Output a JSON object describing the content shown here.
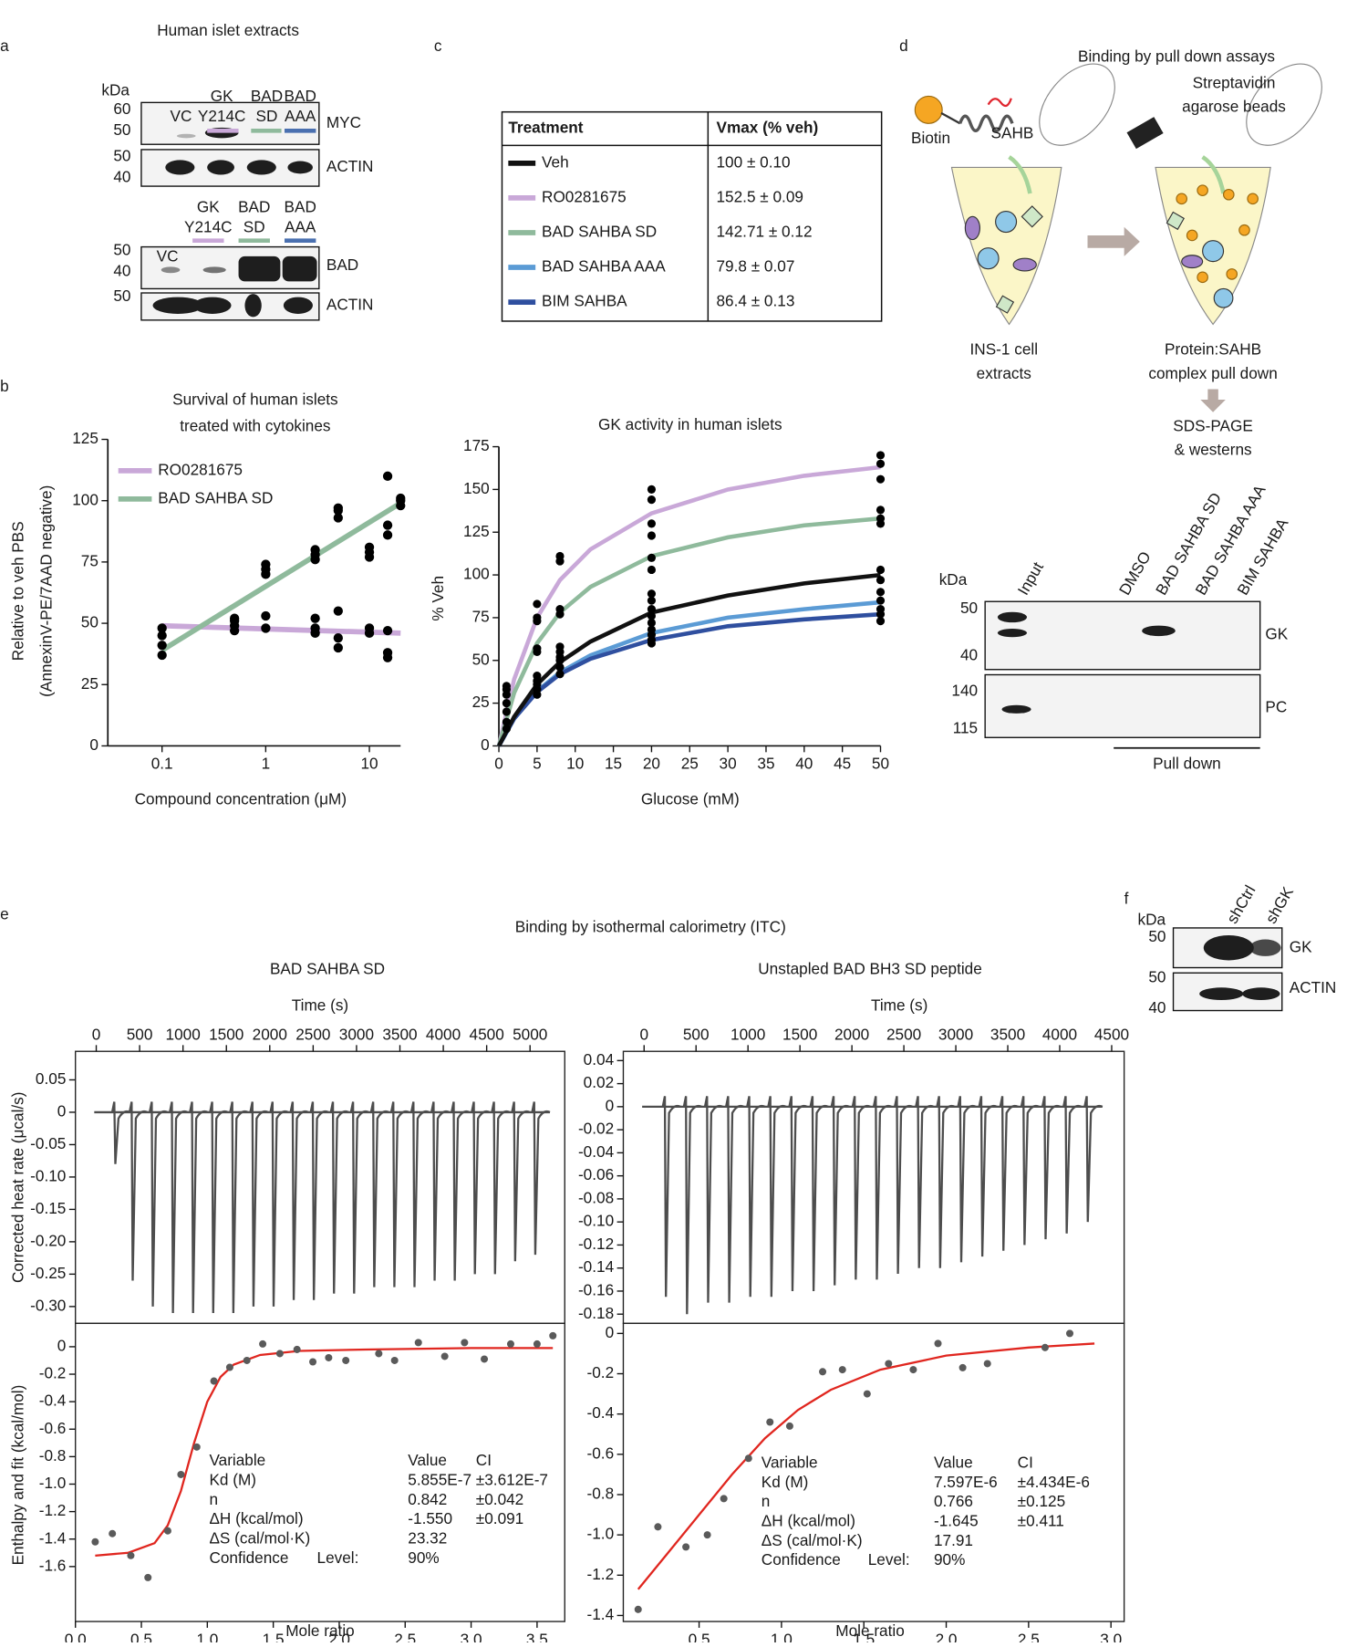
{
  "panels": [
    "a",
    "b",
    "c",
    "d",
    "e",
    "f"
  ],
  "panel_a": {
    "title": "Human islet extracts",
    "kda": "kDa",
    "lanes_top": [
      [
        "VC"
      ],
      [
        "GK",
        "Y214C"
      ],
      [
        "BAD",
        "SD"
      ],
      [
        "BAD",
        "AAA"
      ]
    ],
    "lanes_bottom": [
      [
        "VC"
      ],
      [
        "GK",
        "Y214C"
      ],
      [
        "BAD",
        "SD"
      ],
      [
        "BAD",
        "AAA"
      ]
    ],
    "blots": [
      {
        "label": "MYC",
        "markers": [
          60,
          50
        ]
      },
      {
        "label": "ACTIN",
        "markers": [
          50,
          40
        ]
      },
      {
        "label": "BAD",
        "markers": [
          50,
          40
        ]
      },
      {
        "label": "ACTIN",
        "markers": [
          50
        ]
      }
    ]
  },
  "panel_c": {
    "header": [
      "Treatment",
      "Vmax (% veh)"
    ],
    "rows": [
      {
        "name": "Veh",
        "color": "#111111",
        "value": "100 ± 0.10"
      },
      {
        "name": "RO0281675",
        "color": "#c9a8d8",
        "value": "152.5 ± 0.09"
      },
      {
        "name": "BAD SAHBA SD",
        "color": "#8fba9c",
        "value": "142.71 ± 0.12"
      },
      {
        "name": "BAD SAHBA AAA",
        "color": "#5b9bd5",
        "value": "79.8 ± 0.07"
      },
      {
        "name": "BIM SAHBA",
        "color": "#2f4f9f",
        "value": "86.4 ± 0.13"
      }
    ]
  },
  "panel_d": {
    "title": "Binding by pull down assays",
    "biotin": "Biotin",
    "sahb": "SAHB",
    "beads": [
      "Streptavidin",
      "agarose beads"
    ],
    "extracts": [
      "INS-1 cell",
      "extracts"
    ],
    "complex": [
      "Protein:SAHB",
      "complex pull down"
    ],
    "westerns": [
      "SDS-PAGE",
      "& westerns"
    ],
    "kda": "kDa",
    "lanes": [
      "Input",
      "DMSO",
      "BAD SAHBA SD",
      "BAD SAHBA AAA",
      "BIM SAHBA"
    ],
    "blots": [
      {
        "label": "GK",
        "markers": [
          50,
          40
        ]
      },
      {
        "label": "PC",
        "markers": [
          140,
          115
        ]
      }
    ],
    "pulldown": "Pull down"
  },
  "panel_e": {
    "title": "Binding by isothermal calorimetry (ITC)"
  },
  "panel_f": {
    "kda": "kDa",
    "lanes": [
      "shCtrl",
      "shGK"
    ],
    "blots": [
      {
        "label": "GK",
        "markers": [
          50
        ]
      },
      {
        "label": "ACTIN",
        "markers": [
          50,
          40
        ]
      }
    ]
  },
  "chart_data": [
    {
      "type": "scatter",
      "title": [
        "Survival of human islets",
        "treated with cytokines"
      ],
      "xlabel": "Compound concentration (μM)",
      "ylabel": [
        "Relative to veh PBS",
        "(AnnexinV-PE/7AAD negative)"
      ],
      "xlog": true,
      "xlim": [
        0.03,
        20
      ],
      "xticks": [
        0.1,
        1,
        10
      ],
      "ylim": [
        0,
        125
      ],
      "yticks": [
        0,
        25,
        50,
        75,
        100,
        125
      ],
      "legend": "upper left",
      "point_color": "#000000",
      "series": [
        {
          "name": "RO0281675",
          "color": "#c9a8d8",
          "x": [
            0.1,
            0.1,
            0.5,
            0.5,
            1,
            1,
            3,
            3,
            3,
            5,
            5,
            5,
            10,
            10,
            15,
            15,
            15
          ],
          "values": [
            37,
            41,
            47,
            49,
            48,
            53,
            46,
            48,
            52,
            40,
            44,
            55,
            46,
            48,
            36,
            38,
            47
          ],
          "fit_x": [
            0.1,
            20
          ],
          "fit_values": [
            49,
            46
          ]
        },
        {
          "name": "BAD SAHBA SD",
          "color": "#8fba9c",
          "x": [
            0.1,
            0.1,
            0.5,
            0.5,
            1,
            1,
            1,
            3,
            3,
            3,
            5,
            5,
            5,
            10,
            10,
            10,
            15,
            15,
            15,
            20,
            20,
            20
          ],
          "values": [
            45,
            48,
            51,
            52,
            70,
            72,
            74,
            76,
            78,
            80,
            93,
            96,
            97,
            77,
            79,
            81,
            86,
            90,
            110,
            98,
            100,
            101
          ],
          "fit_x": [
            0.1,
            20
          ],
          "fit_values": [
            39,
            99
          ]
        }
      ]
    },
    {
      "type": "scatter",
      "title": "GK activity in human islets",
      "xlabel": "Glucose (mM)",
      "ylabel": "% Veh",
      "xlim": [
        0,
        50
      ],
      "xticks": [
        0,
        5,
        10,
        15,
        20,
        25,
        30,
        35,
        40,
        45,
        50
      ],
      "ylim": [
        0,
        175
      ],
      "yticks": [
        0,
        25,
        50,
        75,
        100,
        125,
        150,
        175
      ],
      "points": {
        "color": "#000000",
        "x": [
          1,
          1,
          1,
          1,
          1,
          1,
          1,
          5,
          5,
          5,
          5,
          5,
          5,
          5,
          5,
          5,
          5,
          8,
          8,
          8,
          8,
          8,
          8,
          8,
          8,
          8,
          8,
          20,
          20,
          20,
          20,
          20,
          20,
          20,
          20,
          20,
          20,
          20,
          20,
          20,
          20,
          20,
          50,
          50,
          50,
          50,
          50,
          50,
          50,
          50,
          50,
          50,
          50,
          50,
          50
        ],
        "values": [
          10,
          14,
          20,
          25,
          30,
          33,
          35,
          30,
          33,
          36,
          38,
          41,
          55,
          57,
          73,
          75,
          83,
          42,
          46,
          50,
          52,
          55,
          58,
          77,
          80,
          108,
          111,
          60,
          62,
          65,
          68,
          72,
          76,
          80,
          85,
          89,
          103,
          110,
          123,
          130,
          144,
          150,
          73,
          77,
          80,
          85,
          90,
          97,
          103,
          130,
          133,
          138,
          156,
          165,
          170
        ]
      },
      "series": [
        {
          "color": "#c9a8d8",
          "x": [
            0,
            2,
            5,
            8,
            12,
            20,
            30,
            40,
            50
          ],
          "values": [
            0,
            39,
            75,
            97,
            115,
            136,
            150,
            158,
            163
          ]
        },
        {
          "color": "#8fba9c",
          "x": [
            0,
            2,
            5,
            8,
            12,
            20,
            30,
            40,
            50
          ],
          "values": [
            0,
            31,
            60,
            78,
            93,
            111,
            122,
            129,
            133
          ]
        },
        {
          "color": "#5b9bd5",
          "x": [
            0,
            2,
            5,
            8,
            12,
            20,
            30,
            40,
            50
          ],
          "values": [
            0,
            16,
            32,
            43,
            53,
            66,
            75,
            80,
            84
          ]
        },
        {
          "color": "#2f4f9f",
          "x": [
            0,
            2,
            5,
            8,
            12,
            20,
            30,
            40,
            50
          ],
          "values": [
            0,
            16,
            31.5,
            42,
            51,
            62,
            70,
            74,
            77
          ]
        },
        {
          "color": "#111111",
          "x": [
            0,
            2,
            5,
            8,
            12,
            20,
            30,
            40,
            50
          ],
          "values": [
            0,
            17,
            36,
            49,
            61,
            78,
            88,
            95,
            100
          ]
        }
      ]
    },
    {
      "type": "line",
      "title": "BAD SAHBA SD",
      "xlabel": "Time (s)",
      "ylabel": "Corrected heat rate (μcal/s)",
      "xlim": [
        -240,
        5400
      ],
      "xticks": [
        0,
        500,
        1000,
        1500,
        2000,
        2500,
        3000,
        3500,
        4000,
        4500,
        5000
      ],
      "ylim": [
        -0.326,
        0.094
      ],
      "yticks": [
        0.05,
        0,
        -0.05,
        {
          "value": -0.1,
          "label": "-0.10"
        },
        -0.15,
        {
          "value": -0.2,
          "label": "-0.20"
        },
        -0.25,
        {
          "value": -0.3,
          "label": "-0.30"
        }
      ],
      "series": [
        {
          "color": "#4d4d4d",
          "x": [
            220,
            420,
            652,
            884,
            1116,
            1348,
            1580,
            1812,
            2044,
            2276,
            2508,
            2740,
            2972,
            3204,
            3436,
            3668,
            3900,
            4132,
            4364,
            4596,
            4828,
            5060
          ],
          "values": [
            -0.08,
            -0.26,
            -0.3,
            -0.31,
            -0.31,
            -0.31,
            -0.31,
            -0.3,
            -0.3,
            -0.29,
            -0.29,
            -0.28,
            -0.28,
            -0.27,
            -0.27,
            -0.27,
            -0.26,
            -0.26,
            -0.25,
            -0.25,
            -0.23,
            -0.22
          ]
        }
      ]
    },
    {
      "type": "scatter",
      "xlabel": "Mole ratio",
      "ylabel": "Enthalpy and fit (kcal/mol)",
      "xlim": [
        0,
        3.71
      ],
      "xticks": [
        {
          "value": 0,
          "label": "0.0"
        },
        0.5,
        {
          "value": 1,
          "label": "1.0"
        },
        1.5,
        {
          "value": 2,
          "label": "2.0"
        },
        2.5,
        {
          "value": 3,
          "label": "3.0"
        },
        3.5
      ],
      "ylim": [
        -2.0,
        0.17
      ],
      "yticks": [
        0,
        -0.2,
        -0.4,
        -0.6,
        -0.8,
        {
          "value": -1,
          "label": "-1.0"
        },
        -1.2,
        -1.4,
        -1.6
      ],
      "points": {
        "color": "#5a5a5a",
        "x": [
          0.15,
          0.28,
          0.42,
          0.55,
          0.7,
          0.8,
          0.92,
          1.05,
          1.17,
          1.3,
          1.42,
          1.55,
          1.68,
          1.8,
          1.92,
          2.05,
          2.3,
          2.42,
          2.6,
          2.8,
          2.95,
          3.1,
          3.3,
          3.5,
          3.62
        ],
        "values": [
          -1.42,
          -1.36,
          -1.52,
          -1.68,
          -1.34,
          -0.93,
          -0.73,
          -0.25,
          -0.15,
          -0.1,
          0.02,
          -0.05,
          -0.02,
          -0.11,
          -0.08,
          -0.1,
          -0.05,
          -0.1,
          0.03,
          -0.07,
          0.03,
          -0.09,
          0.02,
          0.02,
          0.08
        ]
      },
      "fit": {
        "color": "#e0261f",
        "x": [
          0.15,
          0.4,
          0.6,
          0.7,
          0.8,
          0.9,
          1.0,
          1.1,
          1.2,
          1.4,
          1.7,
          2.2,
          3.0,
          3.62
        ],
        "values": [
          -1.52,
          -1.5,
          -1.43,
          -1.3,
          -1.05,
          -0.7,
          -0.4,
          -0.22,
          -0.13,
          -0.06,
          -0.03,
          -0.02,
          -0.01,
          -0.01
        ]
      },
      "stats": [
        [
          "Variable",
          "Value",
          "CI"
        ],
        [
          "Kd (M)",
          "5.855E-7",
          "±3.612E-7"
        ],
        [
          "n",
          "0.842",
          "±0.042"
        ],
        [
          "ΔH (kcal/mol)",
          "-1.550",
          "±0.091"
        ],
        [
          "ΔS (cal/mol·K)",
          "23.32"
        ],
        [
          "Confidence",
          "Level:",
          "90%"
        ]
      ]
    },
    {
      "type": "line",
      "title": "Unstapled BAD BH3 SD peptide",
      "xlabel": "Time (s)",
      "xlim": [
        -200,
        4620
      ],
      "xticks": [
        0,
        500,
        1000,
        1500,
        2000,
        2500,
        3000,
        3500,
        4000,
        4500
      ],
      "ylim": [
        -0.188,
        0.048
      ],
      "yticks": [
        0.04,
        0.02,
        0,
        -0.02,
        -0.04,
        -0.06,
        -0.08,
        {
          "value": -0.1,
          "label": "-0.10"
        },
        -0.12,
        -0.14,
        -0.16,
        -0.18
      ],
      "series": [
        {
          "color": "#4d4d4d",
          "x": [
            210,
            413,
            616,
            819,
            1022,
            1225,
            1428,
            1631,
            1834,
            2037,
            2240,
            2443,
            2646,
            2849,
            3052,
            3255,
            3458,
            3661,
            3864,
            4067,
            4270
          ],
          "values": [
            -0.165,
            -0.18,
            -0.17,
            -0.17,
            -0.165,
            -0.165,
            -0.16,
            -0.16,
            -0.155,
            -0.15,
            -0.15,
            -0.145,
            -0.14,
            -0.14,
            -0.135,
            -0.13,
            -0.125,
            -0.12,
            -0.115,
            -0.11,
            -0.1
          ]
        }
      ]
    },
    {
      "type": "scatter",
      "xlabel": "Mole ratio",
      "xlim": [
        0.04,
        3.08
      ],
      "xticks": [
        0.5,
        {
          "value": 1,
          "label": "1.0"
        },
        1.5,
        {
          "value": 2,
          "label": "2.0"
        },
        2.5,
        {
          "value": 3,
          "label": "3.0"
        }
      ],
      "ylim": [
        -1.43,
        0.05
      ],
      "yticks": [
        0,
        -0.2,
        -0.4,
        -0.6,
        -0.8,
        {
          "value": -1,
          "label": "-1.0"
        },
        -1.2,
        -1.4
      ],
      "points": {
        "color": "#5a5a5a",
        "x": [
          0.13,
          0.25,
          0.42,
          0.55,
          0.65,
          0.8,
          0.93,
          1.05,
          1.25,
          1.37,
          1.52,
          1.65,
          1.8,
          1.95,
          2.1,
          2.25,
          2.6,
          2.75
        ],
        "values": [
          -1.37,
          -0.96,
          -1.06,
          -1.0,
          -0.82,
          -0.62,
          -0.44,
          -0.46,
          -0.19,
          -0.18,
          -0.3,
          -0.15,
          -0.18,
          -0.05,
          -0.17,
          -0.15,
          -0.07,
          0.0
        ]
      },
      "fit": {
        "color": "#e0261f",
        "x": [
          0.13,
          0.3,
          0.5,
          0.7,
          0.9,
          1.1,
          1.3,
          1.6,
          2.0,
          2.5,
          2.9
        ],
        "values": [
          -1.27,
          -1.1,
          -0.9,
          -0.7,
          -0.52,
          -0.38,
          -0.28,
          -0.18,
          -0.11,
          -0.07,
          -0.05
        ]
      },
      "stats": [
        [
          "Variable",
          "Value",
          "CI"
        ],
        [
          "Kd (M)",
          "7.597E-6",
          "±4.434E-6"
        ],
        [
          "n",
          "0.766",
          "±0.125"
        ],
        [
          "ΔH (kcal/mol)",
          "-1.645",
          "±0.411"
        ],
        [
          "ΔS (cal/mol·K)",
          "17.91"
        ],
        [
          "Confidence",
          "Level:",
          "90%"
        ]
      ]
    }
  ]
}
